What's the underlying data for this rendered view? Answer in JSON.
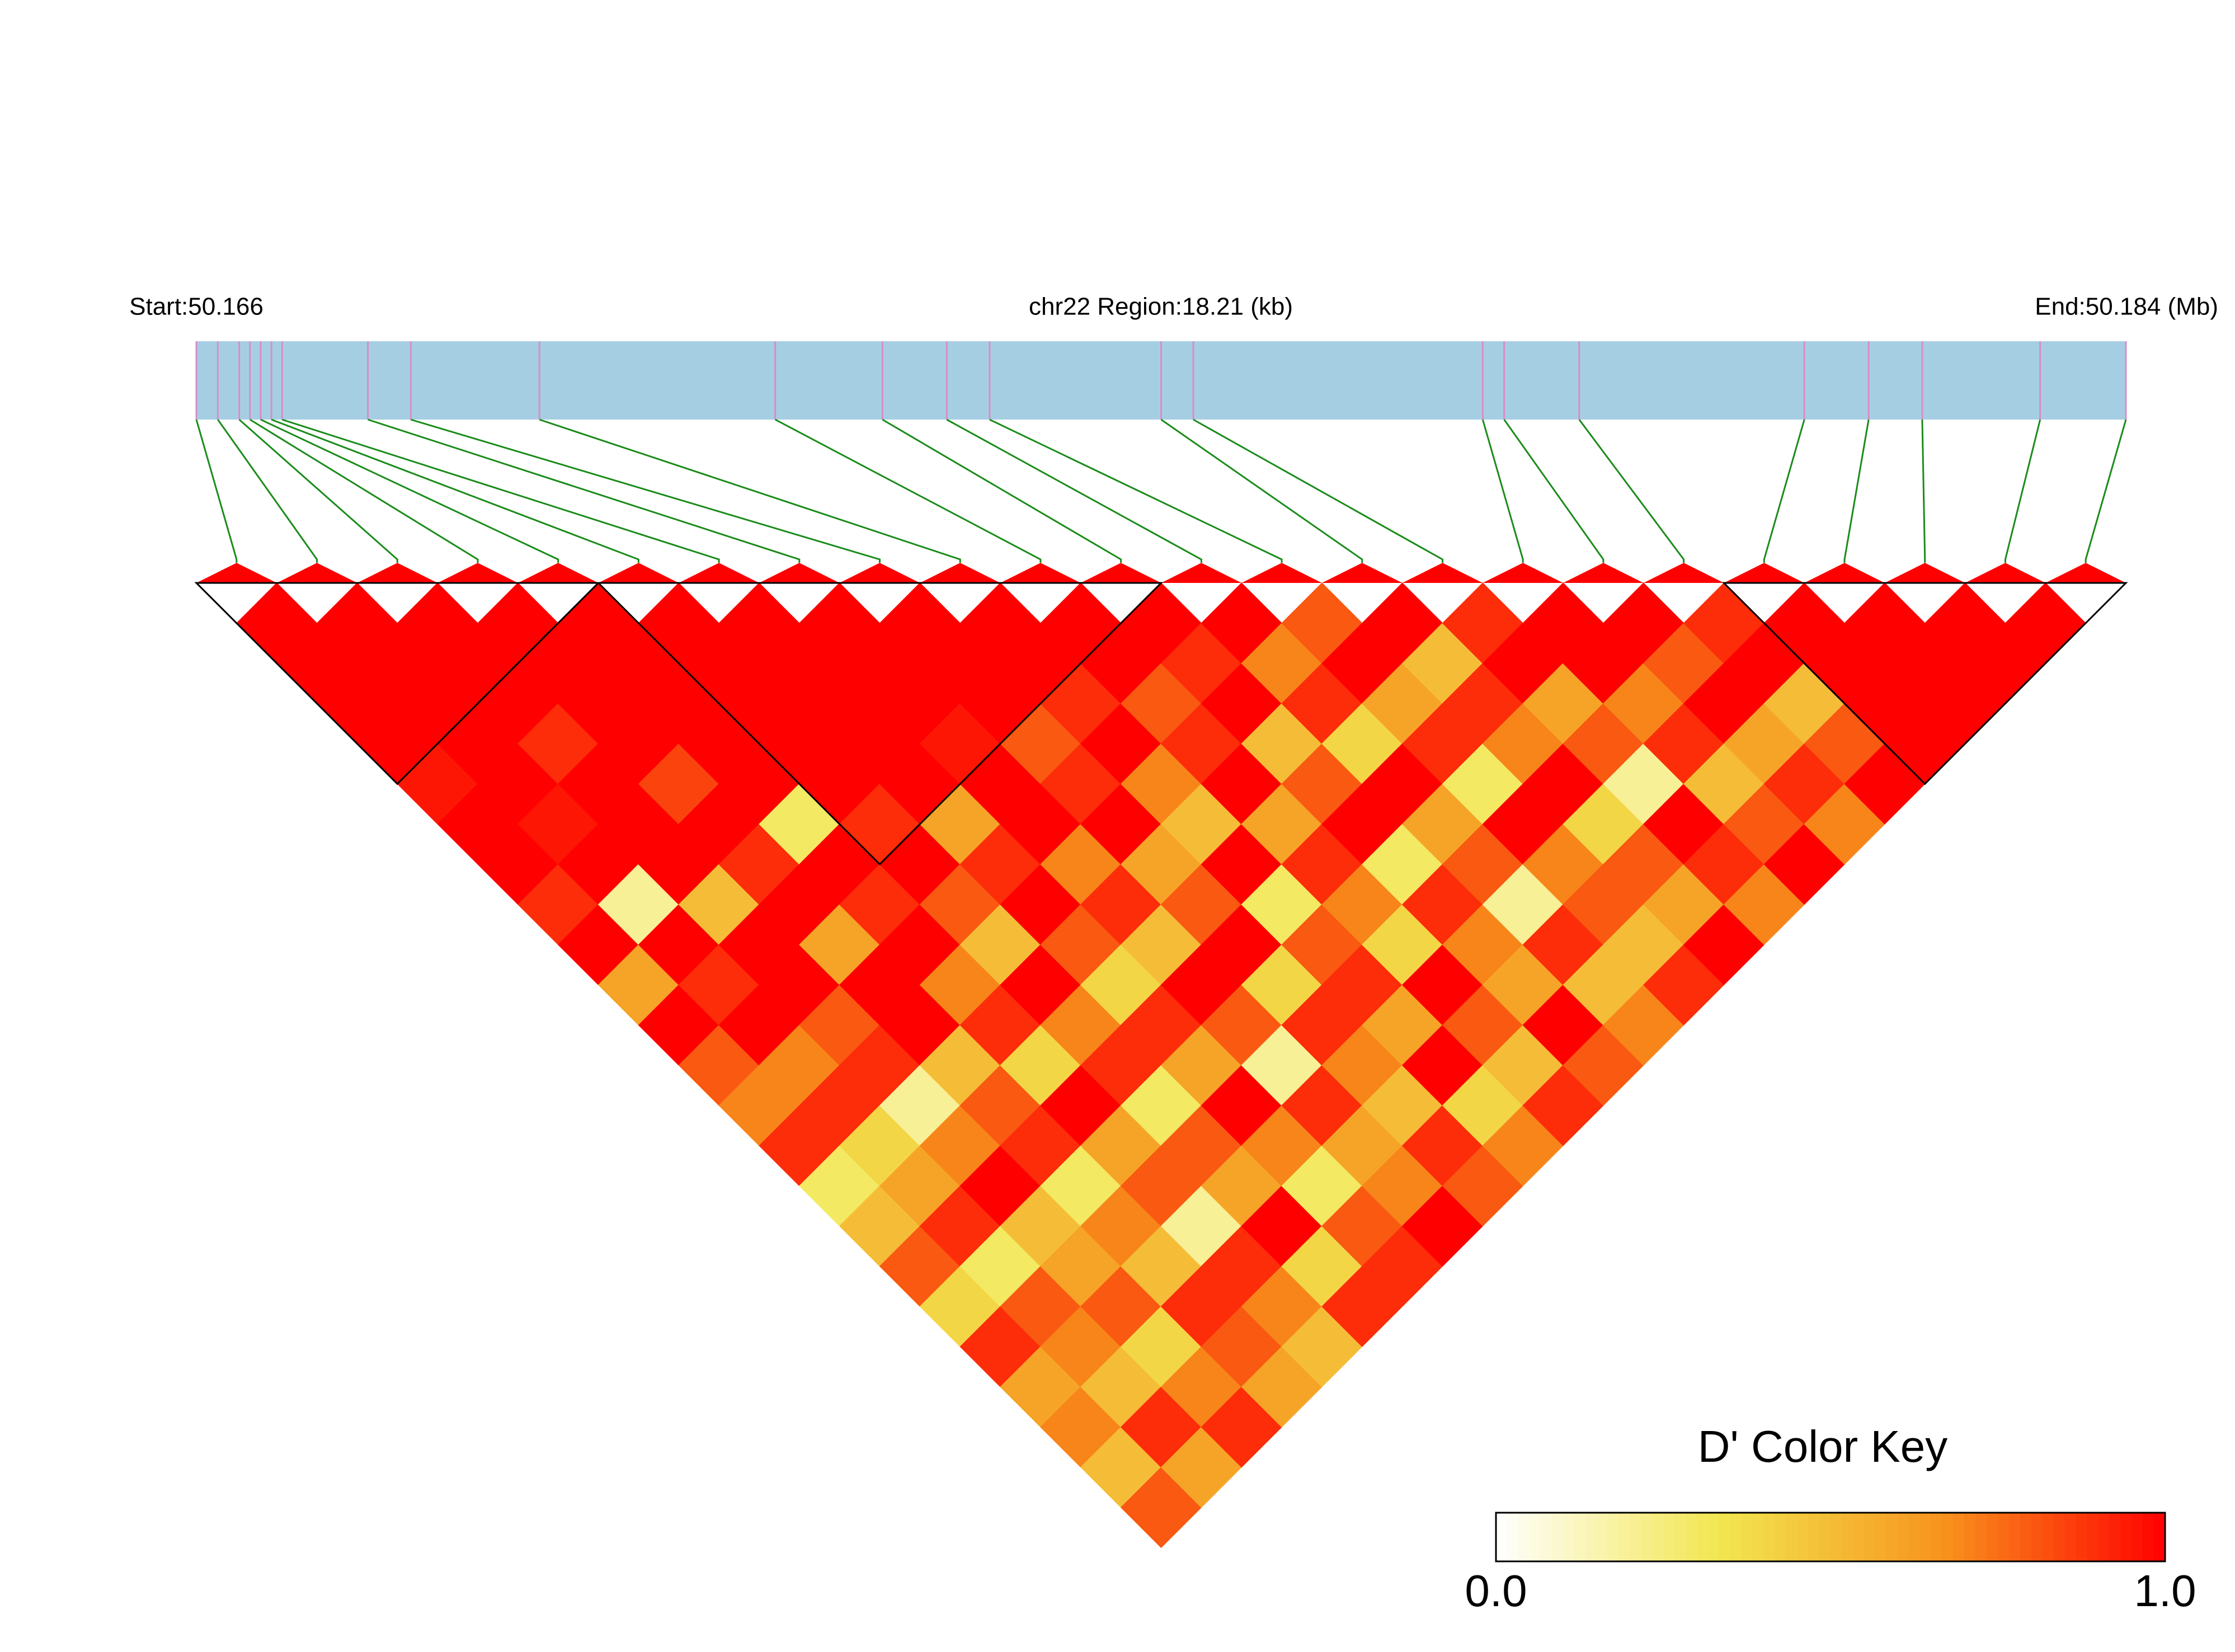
{
  "chart_data": {
    "type": "heatmap",
    "start_label": "Start:50.166",
    "region_label": "chr22 Region:18.21 (kb)",
    "end_label": "End:50.184 (Mb)",
    "key_title": "D' Color Key",
    "xlim": [
      50.166,
      50.184
    ],
    "positions": [
      50.166,
      50.1662,
      50.1664,
      50.1665,
      50.1666,
      50.1667,
      50.1668,
      50.1676,
      50.168,
      50.1692,
      50.1714,
      50.1724,
      50.173,
      50.1734,
      50.175,
      50.1753,
      50.178,
      50.1782,
      50.1789,
      50.181,
      50.1816,
      50.1821,
      50.1832,
      50.184
    ],
    "values": [
      [
        1,
        1,
        1,
        1,
        0.95,
        1,
        1,
        0.9,
        1,
        0.6,
        1,
        0.8,
        0.7,
        0.9,
        0.3,
        0.5,
        0.8,
        0.4,
        0.9,
        0.6,
        0.7,
        0.5,
        0.8
      ],
      [
        1,
        1,
        1,
        1,
        1,
        0.95,
        1,
        0.2,
        1,
        0.9,
        1,
        0.7,
        0.9,
        0.4,
        0.6,
        0.9,
        0.3,
        0.8,
        0.7,
        0.5,
        0.9,
        0.6
      ],
      [
        1,
        1,
        1,
        0.9,
        1,
        1,
        1,
        0.5,
        1,
        1,
        0.8,
        0.9,
        0.2,
        0.7,
        1,
        0.5,
        0.6,
        0.8,
        0.4,
        0.7,
        0.9
      ],
      [
        1,
        1,
        1,
        1,
        0.85,
        1,
        0.9,
        1,
        0.6,
        1,
        1,
        0.5,
        0.8,
        0.9,
        0.3,
        0.7,
        0.5,
        0.9,
        0.8,
        0.6
      ],
      [
        1,
        1,
        1,
        1,
        1,
        0.3,
        1,
        0.9,
        1,
        0.7,
        0.9,
        0.4,
        1,
        0.6,
        0.8,
        0.2,
        0.9,
        0.7,
        0.5
      ],
      [
        1,
        1,
        1,
        1,
        1,
        0.9,
        1,
        0.8,
        0.5,
        1,
        0.7,
        0.9,
        0.3,
        0.8,
        0.6,
        1,
        0.4,
        0.9
      ],
      [
        1,
        1,
        1,
        1,
        1,
        0.6,
        0.9,
        1,
        0.8,
        0.4,
        0.9,
        0.6,
        1,
        0.7,
        0.3,
        0.8,
        0.9
      ],
      [
        1,
        1,
        1,
        0.95,
        1,
        1,
        0.7,
        0.9,
        0.5,
        1,
        0.8,
        0.2,
        0.9,
        0.6,
        0.7,
        1
      ],
      [
        1,
        1,
        1,
        0.8,
        0.9,
        1,
        0.6,
        0.8,
        1,
        0.4,
        0.9,
        0.7,
        0.5,
        0.9,
        0.8
      ],
      [
        1,
        1,
        0.9,
        1,
        0.7,
        0.5,
        1,
        0.3,
        0.8,
        0.9,
        0.6,
        1,
        0.4,
        0.7
      ],
      [
        1,
        1,
        0.8,
        0.9,
        1,
        0.6,
        0.9,
        0.7,
        0.4,
        1,
        0.8,
        0.5,
        0.9
      ],
      [
        1,
        0.9,
        1,
        0.5,
        0.8,
        1,
        0.3,
        0.9,
        0.7,
        0.6,
        1,
        0.8
      ],
      [
        1,
        0.7,
        0.9,
        0.4,
        1,
        0.6,
        0.8,
        0.2,
        0.9,
        0.5,
        0.7
      ],
      [
        0.8,
        1,
        0.6,
        0.9,
        0.3,
        1,
        0.7,
        0.8,
        0.5,
        0.9
      ],
      [
        1,
        0.5,
        0.9,
        0.7,
        1,
        0.4,
        0.8,
        0.6,
        1
      ],
      [
        0.9,
        1,
        0.6,
        0.8,
        0.2,
        1,
        0.9,
        0.7
      ],
      [
        1,
        1,
        0.7,
        0.9,
        0.5,
        0.8,
        1
      ],
      [
        1,
        0.8,
        1,
        0.6,
        0.9,
        0.7
      ],
      [
        0.9,
        1,
        0.5,
        0.8,
        1
      ],
      [
        1,
        1,
        1,
        1
      ],
      [
        1,
        1,
        1
      ],
      [
        1,
        1
      ],
      [
        1
      ]
    ],
    "blocks": [
      [
        0,
        4
      ],
      [
        5,
        11
      ],
      [
        19,
        23
      ]
    ],
    "zlim": [
      0,
      1
    ],
    "zticks": [
      {
        "value": 0,
        "label": "0.0"
      },
      {
        "value": 1,
        "label": "1.0"
      }
    ],
    "colors": [
      "#ffffff",
      "#f2e650",
      "#f7941d",
      "#ff0000"
    ],
    "bar_color": "#a6cee3",
    "tick_color": "#d98cc8",
    "link_color": "#1a8c1a"
  }
}
